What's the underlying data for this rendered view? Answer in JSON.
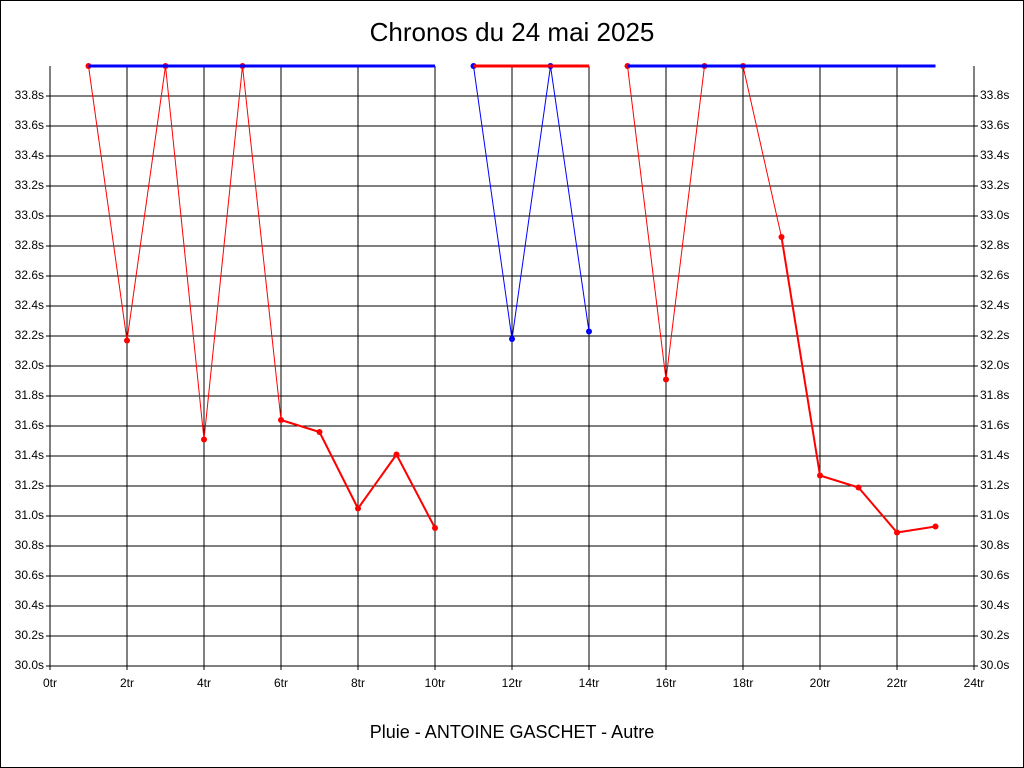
{
  "chart_data": {
    "type": "line",
    "title": "Chronos du 24 mai 2025",
    "xlabel": "Pluie - ANTOINE GASCHET - Autre",
    "x": [
      1,
      2,
      3,
      4,
      5,
      6,
      7,
      8,
      9,
      10,
      11,
      12,
      13,
      14,
      15,
      16,
      17,
      18,
      19,
      20,
      21,
      22,
      23
    ],
    "series": [
      {
        "color": "#ff0000",
        "values": [
          34,
          32.17,
          34,
          31.51,
          34,
          31.64,
          31.56,
          31.05,
          31.41,
          30.92,
          null,
          null,
          null,
          null,
          34,
          31.91,
          34,
          34,
          32.86,
          31.27,
          31.19,
          30.89,
          30.93
        ]
      },
      {
        "color": "#0000ff",
        "values": [
          null,
          null,
          null,
          null,
          null,
          null,
          null,
          null,
          null,
          null,
          34,
          32.18,
          34,
          32.23,
          null,
          null,
          null,
          null,
          null,
          null,
          null,
          null,
          null
        ]
      },
      {
        "color": "#0000ff",
        "values": [
          34,
          34,
          34,
          34,
          34,
          34,
          34,
          34,
          34,
          34,
          null,
          null,
          null,
          null,
          34,
          34,
          34,
          34,
          34,
          34,
          34,
          34,
          34
        ]
      },
      {
        "color": "#ff0000",
        "values": [
          null,
          null,
          null,
          null,
          null,
          null,
          null,
          null,
          null,
          null,
          34,
          34,
          34,
          34,
          null,
          null,
          null,
          null,
          null,
          null,
          null,
          null,
          null
        ]
      }
    ],
    "xlim": [
      0,
      24
    ],
    "xticks": [
      {
        "value": 0,
        "label": "0tr"
      },
      {
        "value": 2,
        "label": "2tr"
      },
      {
        "value": 4,
        "label": "4tr"
      },
      {
        "value": 6,
        "label": "6tr"
      },
      {
        "value": 8,
        "label": "8tr"
      },
      {
        "value": 10,
        "label": "10tr"
      },
      {
        "value": 12,
        "label": "12tr"
      },
      {
        "value": 14,
        "label": "14tr"
      },
      {
        "value": 16,
        "label": "16tr"
      },
      {
        "value": 18,
        "label": "18tr"
      },
      {
        "value": 20,
        "label": "20tr"
      },
      {
        "value": 22,
        "label": "22tr"
      },
      {
        "value": 24,
        "label": "24tr"
      }
    ],
    "ylim": [
      30,
      34
    ],
    "yticks": [
      {
        "value": 30,
        "label": "30.0s"
      },
      {
        "value": 30.2,
        "label": "30.2s"
      },
      {
        "value": 30.4,
        "label": "30.4s"
      },
      {
        "value": 30.6,
        "label": "30.6s"
      },
      {
        "value": 30.8,
        "label": "30.8s"
      },
      {
        "value": 31,
        "label": "31.0s"
      },
      {
        "value": 31.2,
        "label": "31.2s"
      },
      {
        "value": 31.4,
        "label": "31.4s"
      },
      {
        "value": 31.6,
        "label": "31.6s"
      },
      {
        "value": 31.8,
        "label": "31.8s"
      },
      {
        "value": 32,
        "label": "32.0s"
      },
      {
        "value": 32.2,
        "label": "32.2s"
      },
      {
        "value": 32.4,
        "label": "32.4s"
      },
      {
        "value": 32.6,
        "label": "32.6s"
      },
      {
        "value": 32.8,
        "label": "32.8s"
      },
      {
        "value": 33,
        "label": "33.0s"
      },
      {
        "value": 33.2,
        "label": "33.2s"
      },
      {
        "value": 33.4,
        "label": "33.4s"
      },
      {
        "value": 33.6,
        "label": "33.6s"
      },
      {
        "value": 33.8,
        "label": "33.8s"
      }
    ],
    "grid": true
  }
}
